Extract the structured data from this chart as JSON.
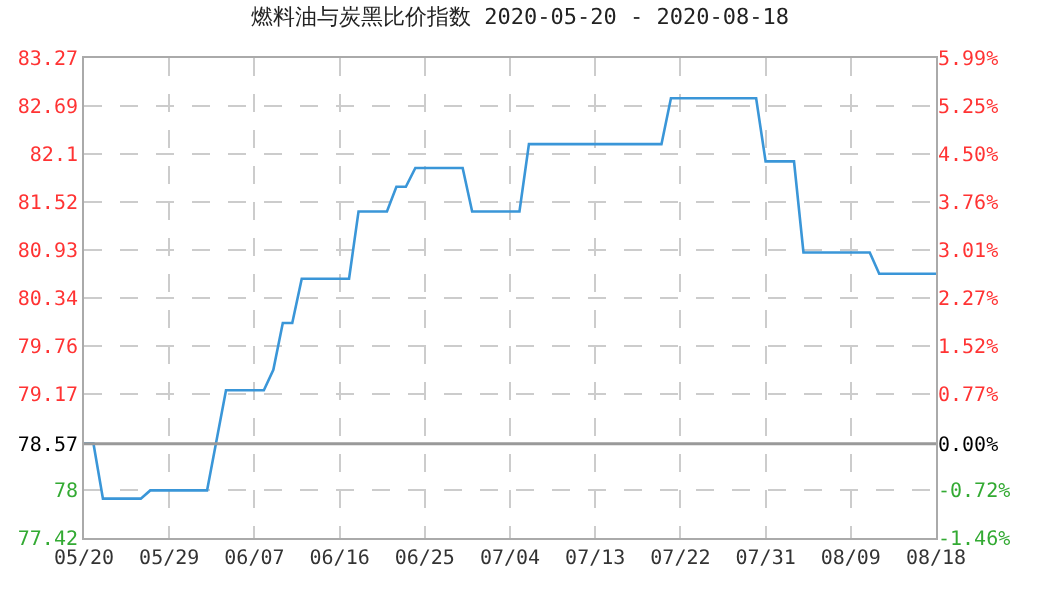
{
  "chart_data": {
    "type": "line",
    "title": "燃料油与炭黑比价指数 2020-05-20 - 2020-08-18",
    "x": [
      "2020-05-20",
      "2020-05-21",
      "2020-05-22",
      "2020-05-26",
      "2020-05-27",
      "2020-06-02",
      "2020-06-04",
      "2020-06-08",
      "2020-06-09",
      "2020-06-10",
      "2020-06-11",
      "2020-06-12",
      "2020-06-17",
      "2020-06-18",
      "2020-06-21",
      "2020-06-22",
      "2020-06-23",
      "2020-06-24",
      "2020-06-29",
      "2020-06-30",
      "2020-07-05",
      "2020-07-06",
      "2020-07-20",
      "2020-07-21",
      "2020-07-30",
      "2020-07-31",
      "2020-08-03",
      "2020-08-04",
      "2020-08-11",
      "2020-08-12",
      "2020-08-18"
    ],
    "series": [
      {
        "color": "#3a96d8",
        "values": [
          78.57,
          78.57,
          77.9,
          77.9,
          78.0,
          78.0,
          79.22,
          79.22,
          79.47,
          80.04,
          80.04,
          80.58,
          80.58,
          81.4,
          81.4,
          81.7,
          81.7,
          81.93,
          81.93,
          81.4,
          81.4,
          82.22,
          82.22,
          82.78,
          82.78,
          82.01,
          82.01,
          80.9,
          80.9,
          80.64,
          80.64
        ]
      }
    ],
    "xlim": [
      "2020-05-20",
      "2020-08-18"
    ],
    "xticks": [
      {
        "value": "2020-05-20",
        "label": "05/20"
      },
      {
        "value": "2020-05-29",
        "label": "05/29"
      },
      {
        "value": "2020-06-07",
        "label": "06/07"
      },
      {
        "value": "2020-06-16",
        "label": "06/16"
      },
      {
        "value": "2020-06-25",
        "label": "06/25"
      },
      {
        "value": "2020-07-04",
        "label": "07/04"
      },
      {
        "value": "2020-07-13",
        "label": "07/13"
      },
      {
        "value": "2020-07-22",
        "label": "07/22"
      },
      {
        "value": "2020-07-31",
        "label": "07/31"
      },
      {
        "value": "2020-08-09",
        "label": "08/09"
      },
      {
        "value": "2020-08-18",
        "label": "08/18"
      }
    ],
    "ylim": [
      77.42,
      83.27
    ],
    "yticks": [
      77.42,
      78,
      78.57,
      79.17,
      79.76,
      80.34,
      80.93,
      81.52,
      82.1,
      82.69,
      83.27
    ],
    "y2lim": [
      -1.46,
      5.99
    ],
    "y2ticks": [
      {
        "value": -1.46,
        "label": "-1.46%"
      },
      {
        "value": -0.72,
        "label": "-0.72%"
      },
      {
        "value": 0,
        "label": "0.00%"
      },
      {
        "value": 0.77,
        "label": "0.77%"
      },
      {
        "value": 1.52,
        "label": "1.52%"
      },
      {
        "value": 2.27,
        "label": "2.27%"
      },
      {
        "value": 3.01,
        "label": "3.01%"
      },
      {
        "value": 3.76,
        "label": "3.76%"
      },
      {
        "value": 4.5,
        "label": "4.50%"
      },
      {
        "value": 5.25,
        "label": "5.25%"
      },
      {
        "value": 5.99,
        "label": "5.99%"
      }
    ],
    "ref_lines": [
      {
        "axis": "y",
        "value": 78.57,
        "color": "#999999"
      }
    ],
    "grid": true,
    "marker": "none",
    "line_style": "solid"
  }
}
